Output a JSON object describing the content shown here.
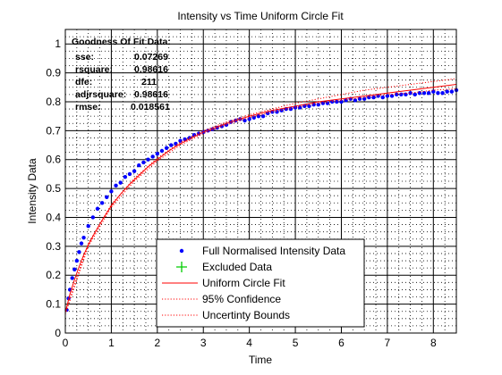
{
  "chart_data": {
    "type": "scatter",
    "title": "Intensity vs Time Uniform Circle Fit",
    "xlabel": "Time",
    "ylabel": "Intensity Data",
    "xlim": [
      0,
      8.5
    ],
    "ylim": [
      0,
      1.05
    ],
    "x_major_ticks": [
      0,
      1,
      2,
      3,
      4,
      5,
      6,
      7,
      8
    ],
    "y_major_ticks": [
      0,
      0.1,
      0.2,
      0.3,
      0.4,
      0.5,
      0.6,
      0.7,
      0.8,
      0.9,
      1
    ],
    "x_tick_labels": [
      "0",
      "1",
      "2",
      "3",
      "4",
      "5",
      "6",
      "7",
      "8"
    ],
    "y_tick_labels": [
      "0",
      "0.1",
      "0.2",
      "0.3",
      "0.4",
      "0.5",
      "0.6",
      "0.7",
      "0.8",
      "0.9",
      "1"
    ],
    "x_minor_step": 0.25,
    "y_minor_step": 0.025,
    "grid": "major solid, minor dotted",
    "legend_position": "bottom-center",
    "series": [
      {
        "name": "Full Normalised Intensity Data",
        "style": "points",
        "color": "#0000ff",
        "x": [
          0.03,
          0.07,
          0.1,
          0.15,
          0.2,
          0.25,
          0.3,
          0.35,
          0.4,
          0.5,
          0.6,
          0.7,
          0.8,
          0.9,
          1.0,
          1.1,
          1.2,
          1.3,
          1.4,
          1.5,
          1.6,
          1.7,
          1.8,
          1.9,
          2.0,
          2.1,
          2.2,
          2.3,
          2.4,
          2.5,
          2.6,
          2.7,
          2.8,
          2.9,
          3.0,
          3.1,
          3.2,
          3.3,
          3.4,
          3.5,
          3.6,
          3.7,
          3.8,
          3.9,
          4.0,
          4.1,
          4.2,
          4.3,
          4.4,
          4.5,
          4.6,
          4.7,
          4.8,
          4.9,
          5.0,
          5.1,
          5.2,
          5.3,
          5.4,
          5.5,
          5.6,
          5.7,
          5.8,
          5.9,
          6.0,
          6.1,
          6.2,
          6.3,
          6.4,
          6.5,
          6.6,
          6.7,
          6.8,
          6.9,
          7.0,
          7.1,
          7.2,
          7.3,
          7.4,
          7.5,
          7.6,
          7.7,
          7.8,
          7.9,
          8.0,
          8.1,
          8.2,
          8.3,
          8.4,
          8.5
        ],
        "y": [
          0.08,
          0.12,
          0.15,
          0.19,
          0.22,
          0.25,
          0.28,
          0.31,
          0.33,
          0.37,
          0.4,
          0.43,
          0.45,
          0.47,
          0.49,
          0.51,
          0.52,
          0.54,
          0.55,
          0.56,
          0.58,
          0.59,
          0.6,
          0.61,
          0.62,
          0.63,
          0.64,
          0.65,
          0.655,
          0.665,
          0.67,
          0.675,
          0.685,
          0.69,
          0.695,
          0.7,
          0.705,
          0.71,
          0.715,
          0.72,
          0.73,
          0.735,
          0.74,
          0.735,
          0.74,
          0.745,
          0.75,
          0.75,
          0.76,
          0.765,
          0.765,
          0.77,
          0.775,
          0.775,
          0.78,
          0.78,
          0.785,
          0.785,
          0.79,
          0.79,
          0.795,
          0.795,
          0.8,
          0.8,
          0.8,
          0.805,
          0.81,
          0.805,
          0.81,
          0.81,
          0.815,
          0.815,
          0.82,
          0.815,
          0.82,
          0.82,
          0.825,
          0.825,
          0.825,
          0.83,
          0.825,
          0.83,
          0.83,
          0.83,
          0.835,
          0.83,
          0.83,
          0.835,
          0.835,
          0.84
        ]
      },
      {
        "name": "Excluded Data",
        "style": "plus",
        "color": "#00cc00",
        "x": [],
        "y": []
      },
      {
        "name": "Uniform Circle Fit",
        "style": "line",
        "color": "#ff0000",
        "x": [
          0.0,
          0.1,
          0.2,
          0.3,
          0.4,
          0.5,
          0.6,
          0.8,
          1.0,
          1.2,
          1.4,
          1.6,
          1.8,
          2.0,
          2.25,
          2.5,
          2.75,
          3.0,
          3.5,
          4.0,
          4.5,
          5.0,
          5.5,
          6.0,
          6.5,
          7.0,
          7.5,
          8.0,
          8.5
        ],
        "y": [
          0.07,
          0.135,
          0.185,
          0.23,
          0.27,
          0.305,
          0.335,
          0.39,
          0.44,
          0.48,
          0.515,
          0.545,
          0.575,
          0.6,
          0.63,
          0.655,
          0.675,
          0.695,
          0.725,
          0.75,
          0.77,
          0.785,
          0.8,
          0.81,
          0.82,
          0.83,
          0.84,
          0.85,
          0.86
        ]
      },
      {
        "name": "95% Confidence",
        "style": "dotted",
        "color": "#ff0000",
        "x": [
          0.0,
          0.5,
          1.0,
          1.5,
          2.0,
          2.5,
          3.0,
          3.5,
          4.0,
          4.5,
          5.0,
          5.5,
          6.0,
          6.5,
          7.0,
          7.5,
          8.0,
          8.5
        ],
        "y": [
          0.075,
          0.31,
          0.445,
          0.535,
          0.605,
          0.66,
          0.7,
          0.73,
          0.755,
          0.775,
          0.795,
          0.81,
          0.825,
          0.84,
          0.85,
          0.86,
          0.87,
          0.88
        ]
      },
      {
        "name": "Uncertinty Bounds",
        "style": "dotted",
        "color": "#ff0000",
        "x": [
          0.0,
          0.5,
          1.0,
          1.5,
          2.0,
          2.5,
          3.0,
          3.5,
          4.0,
          4.5,
          5.0,
          5.5,
          6.0,
          6.5,
          7.0,
          7.5,
          8.0,
          8.5
        ],
        "y": [
          0.065,
          0.3,
          0.435,
          0.525,
          0.595,
          0.65,
          0.69,
          0.72,
          0.745,
          0.765,
          0.78,
          0.795,
          0.805,
          0.815,
          0.825,
          0.83,
          0.84,
          0.845
        ]
      }
    ],
    "annotation": {
      "heading": "Goodness Of Fit Data:",
      "rows": [
        {
          "label": "sse:",
          "value": "0.07269"
        },
        {
          "label": "rsquare:",
          "value": "0.98616"
        },
        {
          "label": "dfe:",
          "value": "211"
        },
        {
          "label": "adjrsquare:",
          "value": "0.98616"
        },
        {
          "label": "rmse:",
          "value": "0.018561"
        }
      ]
    }
  }
}
